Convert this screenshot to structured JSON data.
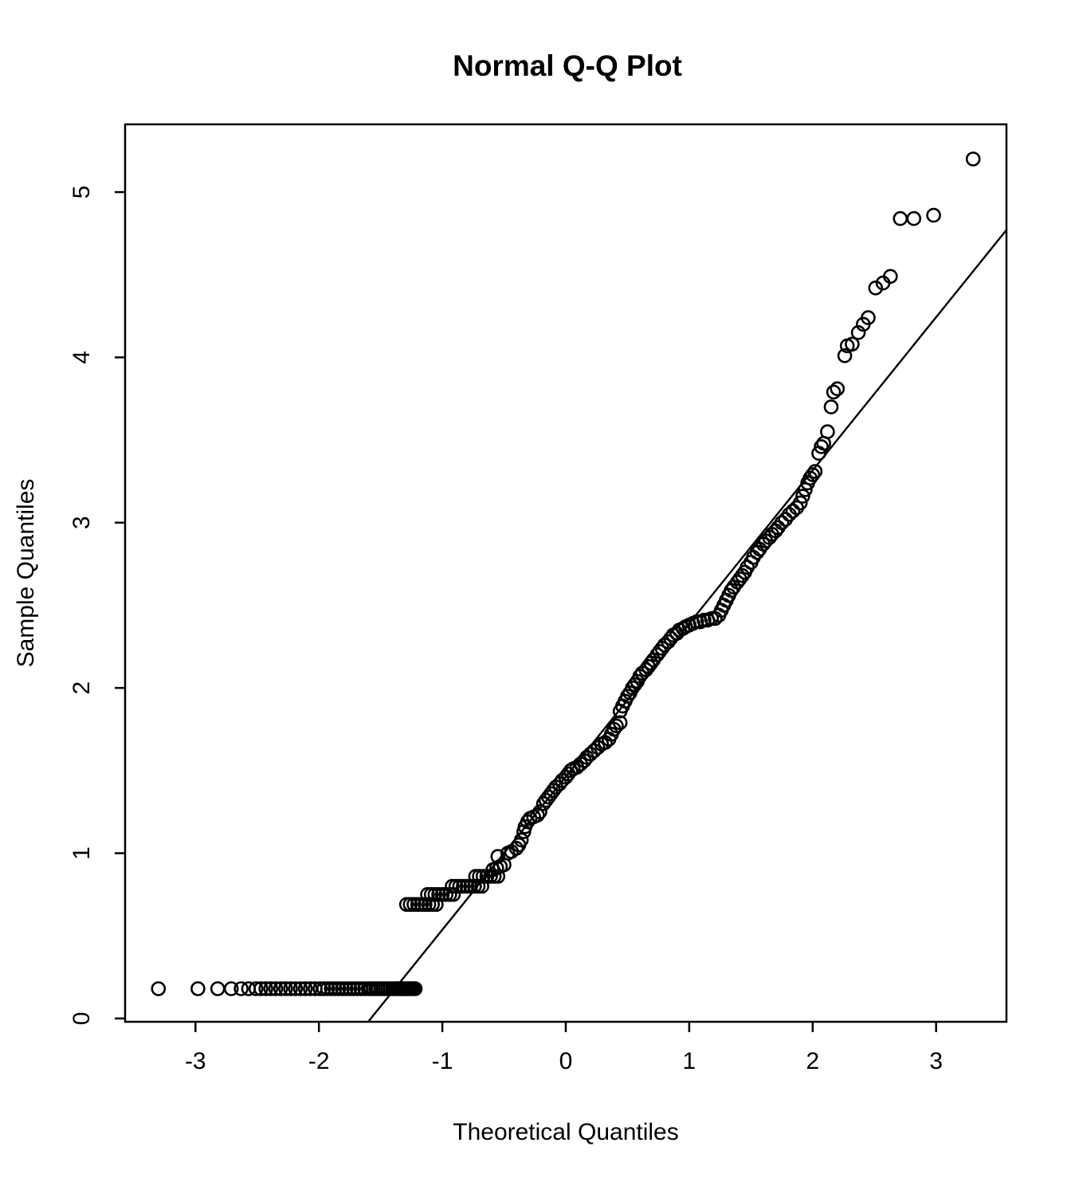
{
  "title": "Normal Q-Q Plot",
  "colors": {
    "background": "#ffffff",
    "foreground": "#000000"
  },
  "x_axis": {
    "label": "Theoretical Quantiles",
    "tick_values": [
      -3,
      -2,
      -1,
      0,
      1,
      2,
      3
    ],
    "tick_labels": [
      "-3",
      "-2",
      "-1",
      "0",
      "1",
      "2",
      "3"
    ]
  },
  "y_axis": {
    "label": "Sample Quantiles",
    "tick_values": [
      0,
      1,
      2,
      3,
      4,
      5
    ],
    "tick_labels": [
      "0",
      "1",
      "2",
      "3",
      "4",
      "5"
    ]
  },
  "chart_data": {
    "type": "scatter",
    "title": "Normal Q-Q Plot",
    "xlabel": "Theoretical Quantiles",
    "ylabel": "Sample Quantiles",
    "xlim": [
      -3.57,
      3.57
    ],
    "ylim": [
      -0.02,
      5.41
    ],
    "grid": "off",
    "legend": "none",
    "marker": {
      "shape": "open-circle",
      "color": "#000000",
      "radius_px": 8,
      "stroke_px": 2.6
    },
    "reference_line": {
      "slope": 0.9265,
      "intercept": 1.463,
      "endpoints": [
        [
          -1.601,
          -0.02
        ],
        [
          3.57,
          4.771
        ]
      ]
    },
    "points": [
      [
        -3.3,
        0.18
      ],
      [
        -2.98,
        0.18
      ],
      [
        -2.82,
        0.18
      ],
      [
        -2.71,
        0.18
      ],
      [
        -2.63,
        0.18
      ],
      [
        -2.57,
        0.18
      ],
      [
        -2.51,
        0.18
      ],
      [
        -2.47,
        0.18
      ],
      [
        -2.43,
        0.18
      ],
      [
        -2.39,
        0.18
      ],
      [
        -2.35,
        0.18
      ],
      [
        -2.31,
        0.18
      ],
      [
        -2.27,
        0.18
      ],
      [
        -2.23,
        0.18
      ],
      [
        -2.19,
        0.18
      ],
      [
        -2.15,
        0.18
      ],
      [
        -2.11,
        0.18
      ],
      [
        -2.07,
        0.18
      ],
      [
        -2.03,
        0.18
      ],
      [
        -1.99,
        0.18
      ],
      [
        -1.96,
        0.18
      ],
      [
        -1.93,
        0.18
      ],
      [
        -1.9,
        0.18
      ],
      [
        -1.87,
        0.18
      ],
      [
        -1.84,
        0.18
      ],
      [
        -1.81,
        0.18
      ],
      [
        -1.78,
        0.18
      ],
      [
        -1.75,
        0.18
      ],
      [
        -1.72,
        0.18
      ],
      [
        -1.69,
        0.18
      ],
      [
        -1.66,
        0.18
      ],
      [
        -1.63,
        0.18
      ],
      [
        -1.6,
        0.18
      ],
      [
        -1.58,
        0.18
      ],
      [
        -1.56,
        0.18
      ],
      [
        -1.54,
        0.18
      ],
      [
        -1.52,
        0.18
      ],
      [
        -1.5,
        0.18
      ],
      [
        -1.48,
        0.18
      ],
      [
        -1.46,
        0.18
      ],
      [
        -1.44,
        0.18
      ],
      [
        -1.42,
        0.18
      ],
      [
        -1.4,
        0.18
      ],
      [
        -1.385,
        0.18
      ],
      [
        -1.37,
        0.18
      ],
      [
        -1.355,
        0.18
      ],
      [
        -1.34,
        0.18
      ],
      [
        -1.325,
        0.18
      ],
      [
        -1.31,
        0.18
      ],
      [
        -1.295,
        0.18
      ],
      [
        -1.28,
        0.18
      ],
      [
        -1.265,
        0.18
      ],
      [
        -1.25,
        0.18
      ],
      [
        -1.235,
        0.18
      ],
      [
        -1.22,
        0.18
      ],
      [
        -1.29,
        0.69
      ],
      [
        -1.26,
        0.69
      ],
      [
        -1.23,
        0.69
      ],
      [
        -1.2,
        0.69
      ],
      [
        -1.17,
        0.69
      ],
      [
        -1.14,
        0.69
      ],
      [
        -1.11,
        0.69
      ],
      [
        -1.08,
        0.69
      ],
      [
        -1.05,
        0.69
      ],
      [
        -1.12,
        0.75
      ],
      [
        -1.09,
        0.75
      ],
      [
        -1.06,
        0.75
      ],
      [
        -1.03,
        0.75
      ],
      [
        -1.0,
        0.75
      ],
      [
        -0.97,
        0.75
      ],
      [
        -0.94,
        0.75
      ],
      [
        -0.91,
        0.75
      ],
      [
        -0.92,
        0.8
      ],
      [
        -0.89,
        0.8
      ],
      [
        -0.86,
        0.8
      ],
      [
        -0.83,
        0.8
      ],
      [
        -0.8,
        0.8
      ],
      [
        -0.77,
        0.8
      ],
      [
        -0.74,
        0.8
      ],
      [
        -0.71,
        0.8
      ],
      [
        -0.68,
        0.8
      ],
      [
        -0.73,
        0.86
      ],
      [
        -0.7,
        0.86
      ],
      [
        -0.67,
        0.86
      ],
      [
        -0.64,
        0.86
      ],
      [
        -0.61,
        0.86
      ],
      [
        -0.58,
        0.86
      ],
      [
        -0.55,
        0.86
      ],
      [
        -0.59,
        0.9
      ],
      [
        -0.56,
        0.91
      ],
      [
        -0.53,
        0.92
      ],
      [
        -0.5,
        0.93
      ],
      [
        -0.55,
        0.98
      ],
      [
        -0.47,
        1.0
      ],
      [
        -0.44,
        1.01
      ],
      [
        -0.4,
        1.03
      ],
      [
        -0.38,
        1.05
      ],
      [
        -0.36,
        1.08
      ],
      [
        -0.34,
        1.13
      ],
      [
        -0.33,
        1.16
      ],
      [
        -0.31,
        1.19
      ],
      [
        -0.29,
        1.21
      ],
      [
        -0.26,
        1.22
      ],
      [
        -0.23,
        1.23
      ],
      [
        -0.21,
        1.25
      ],
      [
        -0.18,
        1.3
      ],
      [
        -0.16,
        1.32
      ],
      [
        -0.14,
        1.34
      ],
      [
        -0.12,
        1.36
      ],
      [
        -0.1,
        1.38
      ],
      [
        -0.08,
        1.4
      ],
      [
        -0.05,
        1.42
      ],
      [
        -0.03,
        1.44
      ],
      [
        0.0,
        1.46
      ],
      [
        0.02,
        1.48
      ],
      [
        0.04,
        1.5
      ],
      [
        0.06,
        1.51
      ],
      [
        0.09,
        1.52
      ],
      [
        0.12,
        1.54
      ],
      [
        0.15,
        1.56
      ],
      [
        0.17,
        1.58
      ],
      [
        0.2,
        1.6
      ],
      [
        0.23,
        1.62
      ],
      [
        0.26,
        1.64
      ],
      [
        0.29,
        1.66
      ],
      [
        0.32,
        1.67
      ],
      [
        0.35,
        1.69
      ],
      [
        0.37,
        1.72
      ],
      [
        0.39,
        1.75
      ],
      [
        0.41,
        1.77
      ],
      [
        0.44,
        1.79
      ],
      [
        0.44,
        1.86
      ],
      [
        0.46,
        1.89
      ],
      [
        0.48,
        1.92
      ],
      [
        0.5,
        1.95
      ],
      [
        0.52,
        1.97
      ],
      [
        0.54,
        2.0
      ],
      [
        0.56,
        2.02
      ],
      [
        0.58,
        2.04
      ],
      [
        0.6,
        2.07
      ],
      [
        0.62,
        2.09
      ],
      [
        0.65,
        2.11
      ],
      [
        0.67,
        2.13
      ],
      [
        0.69,
        2.15
      ],
      [
        0.71,
        2.17
      ],
      [
        0.74,
        2.2
      ],
      [
        0.76,
        2.22
      ],
      [
        0.78,
        2.24
      ],
      [
        0.8,
        2.26
      ],
      [
        0.83,
        2.28
      ],
      [
        0.85,
        2.3
      ],
      [
        0.87,
        2.32
      ],
      [
        0.9,
        2.33
      ],
      [
        0.92,
        2.35
      ],
      [
        0.95,
        2.36
      ],
      [
        0.97,
        2.37
      ],
      [
        1.0,
        2.38
      ],
      [
        1.03,
        2.39
      ],
      [
        1.06,
        2.4
      ],
      [
        1.09,
        2.4
      ],
      [
        1.12,
        2.41
      ],
      [
        1.15,
        2.41
      ],
      [
        1.18,
        2.42
      ],
      [
        1.21,
        2.42
      ],
      [
        1.24,
        2.44
      ],
      [
        1.26,
        2.47
      ],
      [
        1.28,
        2.5
      ],
      [
        1.3,
        2.53
      ],
      [
        1.32,
        2.56
      ],
      [
        1.34,
        2.59
      ],
      [
        1.36,
        2.61
      ],
      [
        1.39,
        2.64
      ],
      [
        1.41,
        2.66
      ],
      [
        1.43,
        2.68
      ],
      [
        1.45,
        2.7
      ],
      [
        1.47,
        2.73
      ],
      [
        1.5,
        2.76
      ],
      [
        1.52,
        2.79
      ],
      [
        1.55,
        2.82
      ],
      [
        1.57,
        2.84
      ],
      [
        1.6,
        2.87
      ],
      [
        1.62,
        2.89
      ],
      [
        1.65,
        2.91
      ],
      [
        1.67,
        2.93
      ],
      [
        1.7,
        2.95
      ],
      [
        1.72,
        2.97
      ],
      [
        1.75,
        3.0
      ],
      [
        1.78,
        3.02
      ],
      [
        1.81,
        3.05
      ],
      [
        1.84,
        3.07
      ],
      [
        1.87,
        3.09
      ],
      [
        1.9,
        3.12
      ],
      [
        1.92,
        3.16
      ],
      [
        1.94,
        3.2
      ],
      [
        1.96,
        3.24
      ],
      [
        1.98,
        3.27
      ],
      [
        2.0,
        3.29
      ],
      [
        2.02,
        3.31
      ],
      [
        2.05,
        3.42
      ],
      [
        2.07,
        3.46
      ],
      [
        2.09,
        3.48
      ],
      [
        2.12,
        3.55
      ],
      [
        2.15,
        3.7
      ],
      [
        2.17,
        3.79
      ],
      [
        2.2,
        3.81
      ],
      [
        2.26,
        4.01
      ],
      [
        2.28,
        4.07
      ],
      [
        2.32,
        4.08
      ],
      [
        2.37,
        4.15
      ],
      [
        2.41,
        4.2
      ],
      [
        2.45,
        4.24
      ],
      [
        2.51,
        4.42
      ],
      [
        2.57,
        4.45
      ],
      [
        2.63,
        4.49
      ],
      [
        2.71,
        4.84
      ],
      [
        2.82,
        4.84
      ],
      [
        2.98,
        4.86
      ],
      [
        3.3,
        5.2
      ]
    ]
  }
}
